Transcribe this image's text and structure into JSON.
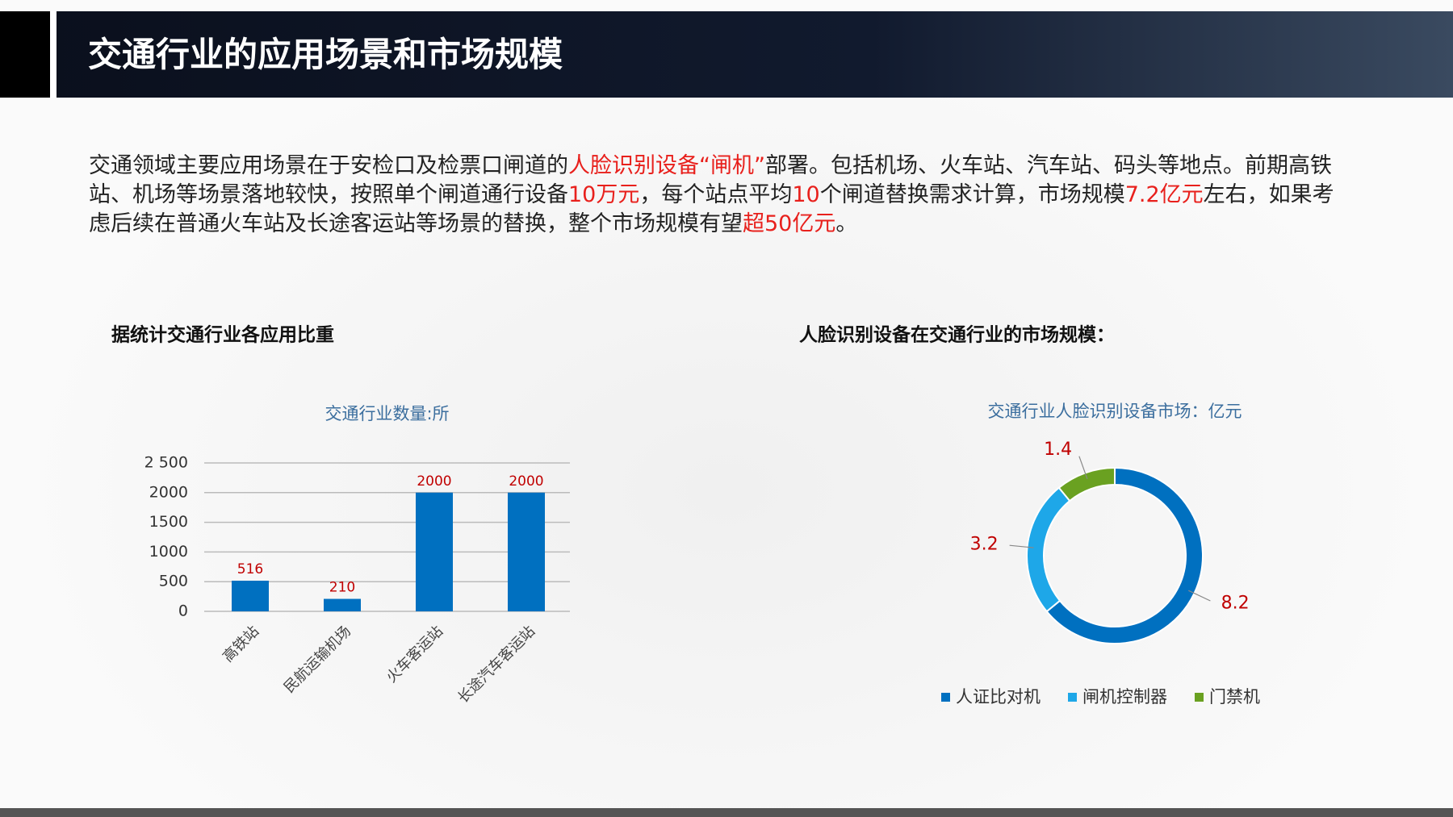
{
  "header": {
    "title": "交通行业的应用场景和市场规模"
  },
  "paragraph": {
    "runs": [
      {
        "text": "交通领域主要应用场景在于安检口及检票口闸道的",
        "color": "#222222"
      },
      {
        "text": "人脸识别设备“闸机”",
        "color": "#e8201c"
      },
      {
        "text": "部署。包括机场、火车站、汽车站、码头等地点。前期高铁站、机场等场景落地较快，按照单个闸道通行设备",
        "color": "#222222"
      },
      {
        "text": "10万元",
        "color": "#e8201c"
      },
      {
        "text": "，每个站点平均",
        "color": "#222222"
      },
      {
        "text": "10",
        "color": "#e8201c"
      },
      {
        "text": "个闸道替换需求计算，市场规模",
        "color": "#222222"
      },
      {
        "text": "7.2亿元",
        "color": "#e8201c"
      },
      {
        "text": "左右，如果考虑后续在普通火车站及长途客运站等场景的替换，整个市场规模有望",
        "color": "#222222"
      },
      {
        "text": "超50亿元",
        "color": "#e8201c"
      },
      {
        "text": "。",
        "color": "#222222"
      }
    ]
  },
  "chart_data": [
    {
      "type": "bar",
      "heading": "据统计交通行业各应用比重",
      "title": "交通行业数量:所",
      "categories": [
        "高铁站",
        "民航运输机场",
        "火车客运站",
        "长途汽车客运站"
      ],
      "values": [
        516,
        210,
        2000,
        2000
      ],
      "color": "#0070c0",
      "label_color": "#c00000",
      "ylim": [
        0,
        2500
      ],
      "yticks": [
        0,
        500,
        1000,
        1500,
        2000,
        {
          "value": 2500,
          "label": "2 500"
        }
      ],
      "grid": true
    },
    {
      "type": "pie",
      "heading": "人脸识别设备在交通行业的市场规模：",
      "title": "交通行业人脸识别设备市场：亿元",
      "categories": [
        "人证比对机",
        "闸机控制器",
        "门禁机"
      ],
      "values": [
        8.2,
        3.2,
        1.4
      ],
      "colors": [
        "#0070c0",
        "#1ea7e8",
        "#6aa121"
      ],
      "label_color": "#c00000",
      "donut": true,
      "legend": "bottom"
    }
  ]
}
